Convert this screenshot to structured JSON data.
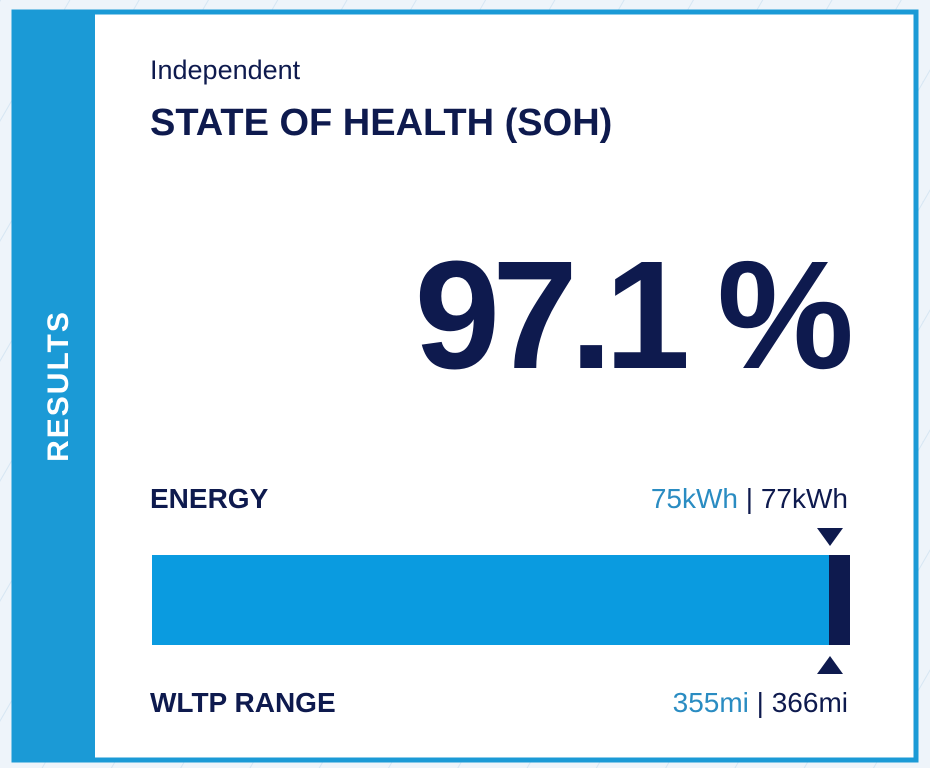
{
  "side_label": "RESULTS",
  "header": {
    "subtitle": "Independent",
    "title": "STATE OF HEALTH (SOH)"
  },
  "result": "97.1 %",
  "energy": {
    "label": "ENERGY",
    "current": "75kWh",
    "separator": "|",
    "original": "77kWh"
  },
  "range": {
    "label": "WLTP RANGE",
    "current": "355mi",
    "separator": "|",
    "original": "366mi"
  }
}
